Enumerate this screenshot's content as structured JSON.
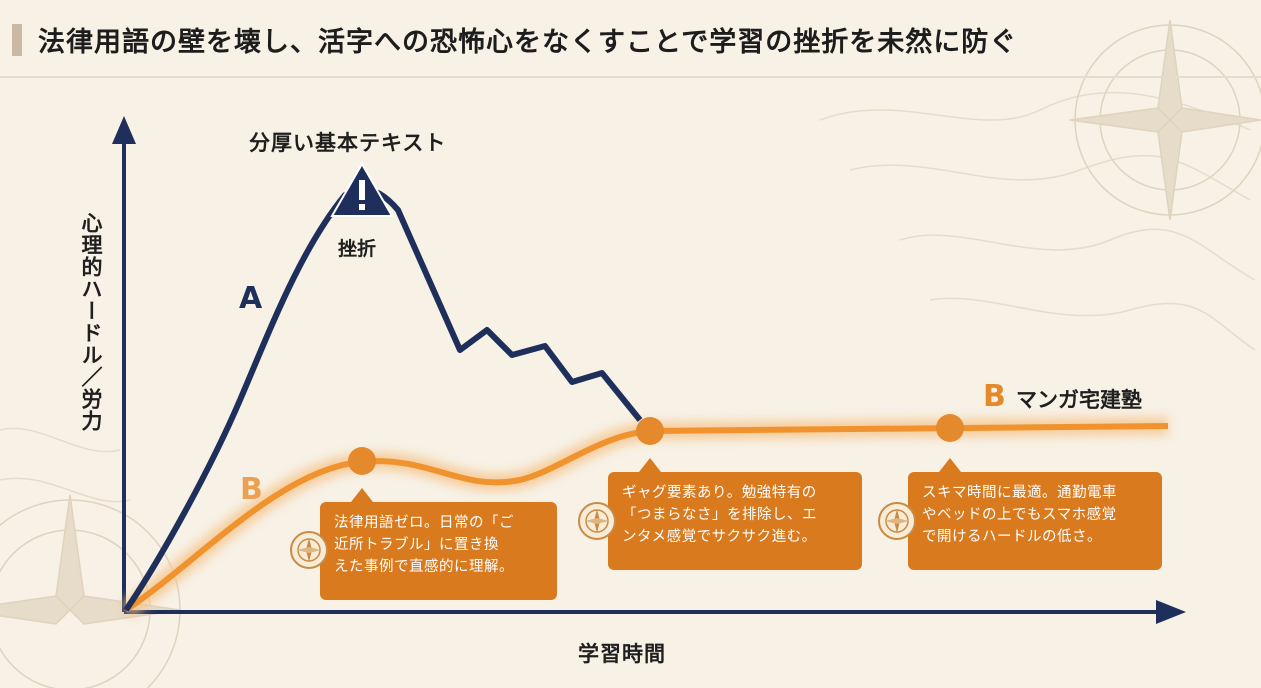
{
  "title": "法律用語の壁を壊し、活字への恐怖心をなくすことで学習の挫折を未然に防ぐ",
  "axes": {
    "y_label": "心理的ハードル／労力",
    "x_label": "学習時間"
  },
  "curve_a": {
    "letter": "A",
    "peak_label": "分厚い基本テキスト",
    "peak_warning": "!",
    "fail_label": "挫折",
    "color": "#1d2f5a"
  },
  "curve_b": {
    "letter": "B",
    "legend_letter": "B",
    "legend_name": "マンガ宅建塾",
    "color": "#f0932e"
  },
  "callouts": [
    {
      "lines": [
        "法律用語ゼロ。日常の「ご",
        "近所トラブル」に置き換",
        "えた事例で直感的に理解。"
      ]
    },
    {
      "lines": [
        "ギャグ要素あり。勉強特有の",
        "「つまらなさ」を排除し、エ",
        "ンタメ感覚でサクサク進む。"
      ]
    },
    {
      "lines": [
        "スキマ時間に最適。通勤電車",
        "やベッドの上でもスマホ感覚",
        "で開けるハードルの低さ。"
      ]
    }
  ],
  "colors": {
    "accent_orange": "#d97a1f",
    "navy": "#1d2f5a",
    "background": "#f7f1e6"
  },
  "icons": [
    "warning-icon",
    "compass-icon"
  ]
}
